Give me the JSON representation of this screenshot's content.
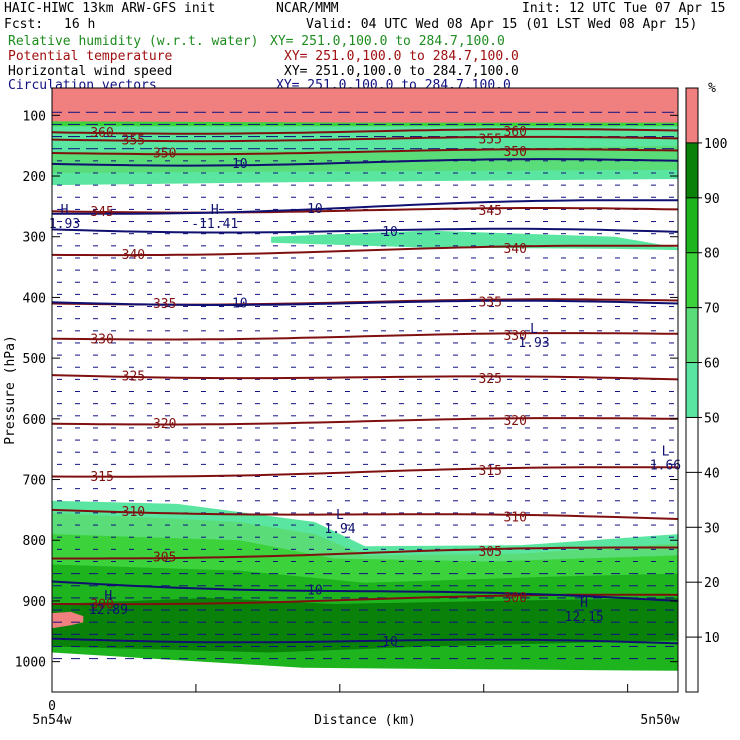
{
  "header": {
    "model": "HAIC-HIWC 13km ARW-GFS init",
    "org": "NCAR/MMM",
    "init": "Init: 12 UTC Tue 07 Apr 15",
    "fcst_label": "Fcst:",
    "fcst_value": "16 h",
    "valid": "Valid: 04 UTC Wed 08 Apr 15 (01 LST Wed 08 Apr 15)"
  },
  "fields": [
    {
      "name": "Relative humidity (w.r.t. water)",
      "xy": "XY= 251.0,100.0 to 284.7,100.0",
      "color": "#1e8c1e"
    },
    {
      "name": "Potential temperature",
      "xy": "XY= 251.0,100.0 to 284.7,100.0",
      "color": "#a01010"
    },
    {
      "name": "Horizontal wind speed",
      "xy": "XY= 251.0,100.0 to 284.7,100.0",
      "color": "#000000"
    },
    {
      "name": "Circulation vectors",
      "xy": "XY= 251.0,100.0 to 284.7,100.0",
      "color": "#101080"
    }
  ],
  "chart_data": {
    "type": "cross-section",
    "ylabel": "Pressure (hPa)",
    "xlabel": "Distance (km)",
    "x_start_label": "0",
    "x_left_label": "5n54w",
    "x_right_label": "5n50w",
    "yticks": [
      100,
      200,
      300,
      400,
      500,
      600,
      700,
      800,
      900,
      1000
    ],
    "ylim": [
      1050,
      55
    ],
    "colorbar": {
      "unit": "%",
      "ticks": [
        10,
        20,
        30,
        40,
        50,
        60,
        70,
        80,
        90,
        100
      ],
      "bands": [
        {
          "from": 0,
          "to": 50,
          "color": "#ffffff"
        },
        {
          "from": 50,
          "to": 60,
          "color": "#5ae6a0"
        },
        {
          "from": 60,
          "to": 70,
          "color": "#5adc78"
        },
        {
          "from": 70,
          "to": 80,
          "color": "#3cd23c"
        },
        {
          "from": 80,
          "to": 90,
          "color": "#1eb41e"
        },
        {
          "from": 90,
          "to": 100,
          "color": "#0a820a"
        },
        {
          "from": 100,
          "to": 110,
          "color": "#f08080"
        }
      ]
    },
    "theta_contours": [
      {
        "label": "360",
        "left_p": 128,
        "right_p": 125
      },
      {
        "label": "355",
        "left_p": 140,
        "right_p": 138
      },
      {
        "label": "350",
        "left_p": 162,
        "right_p": 158
      },
      {
        "label": "345",
        "left_p": 258,
        "right_p": 255
      },
      {
        "label": "340",
        "left_p": 330,
        "right_p": 315
      },
      {
        "label": "335",
        "left_p": 410,
        "right_p": 405
      },
      {
        "label": "330",
        "left_p": 468,
        "right_p": 460
      },
      {
        "label": "325",
        "left_p": 528,
        "right_p": 535
      },
      {
        "label": "320",
        "left_p": 608,
        "right_p": 600
      },
      {
        "label": "315",
        "left_p": 695,
        "right_p": 680
      },
      {
        "label": "310",
        "left_p": 750,
        "right_p": 765
      },
      {
        "label": "305",
        "left_p": 830,
        "right_p": 812
      },
      {
        "label": "300",
        "left_p": 905,
        "right_p": 890
      }
    ],
    "wind_contours": [
      {
        "label": "10",
        "left_p": 180,
        "right_p": 175
      },
      {
        "label": "10",
        "left_p": 262,
        "right_p": 240
      },
      {
        "label": "10",
        "left_p": 288,
        "right_p": 292
      },
      {
        "label": "10",
        "left_p": 408,
        "right_p": 410
      },
      {
        "label": "10",
        "left_p": 868,
        "right_p": 900
      },
      {
        "label": "10",
        "left_p": 962,
        "right_p": 970
      }
    ],
    "extrema": [
      {
        "type": "H",
        "value": "1.93",
        "x_frac": 0.02,
        "p": 282
      },
      {
        "type": "H",
        "value": "-11.41",
        "x_frac": 0.26,
        "p": 282
      },
      {
        "type": "L",
        "value": "1.93",
        "x_frac": 0.77,
        "p": 478
      },
      {
        "type": "L",
        "value": "1.66",
        "x_frac": 0.98,
        "p": 680
      },
      {
        "type": "L",
        "value": "1.94",
        "x_frac": 0.46,
        "p": 785
      },
      {
        "type": "H",
        "value": "12.89",
        "x_frac": 0.09,
        "p": 918
      },
      {
        "type": "H",
        "value": "12.15",
        "x_frac": 0.85,
        "p": 930
      }
    ]
  }
}
